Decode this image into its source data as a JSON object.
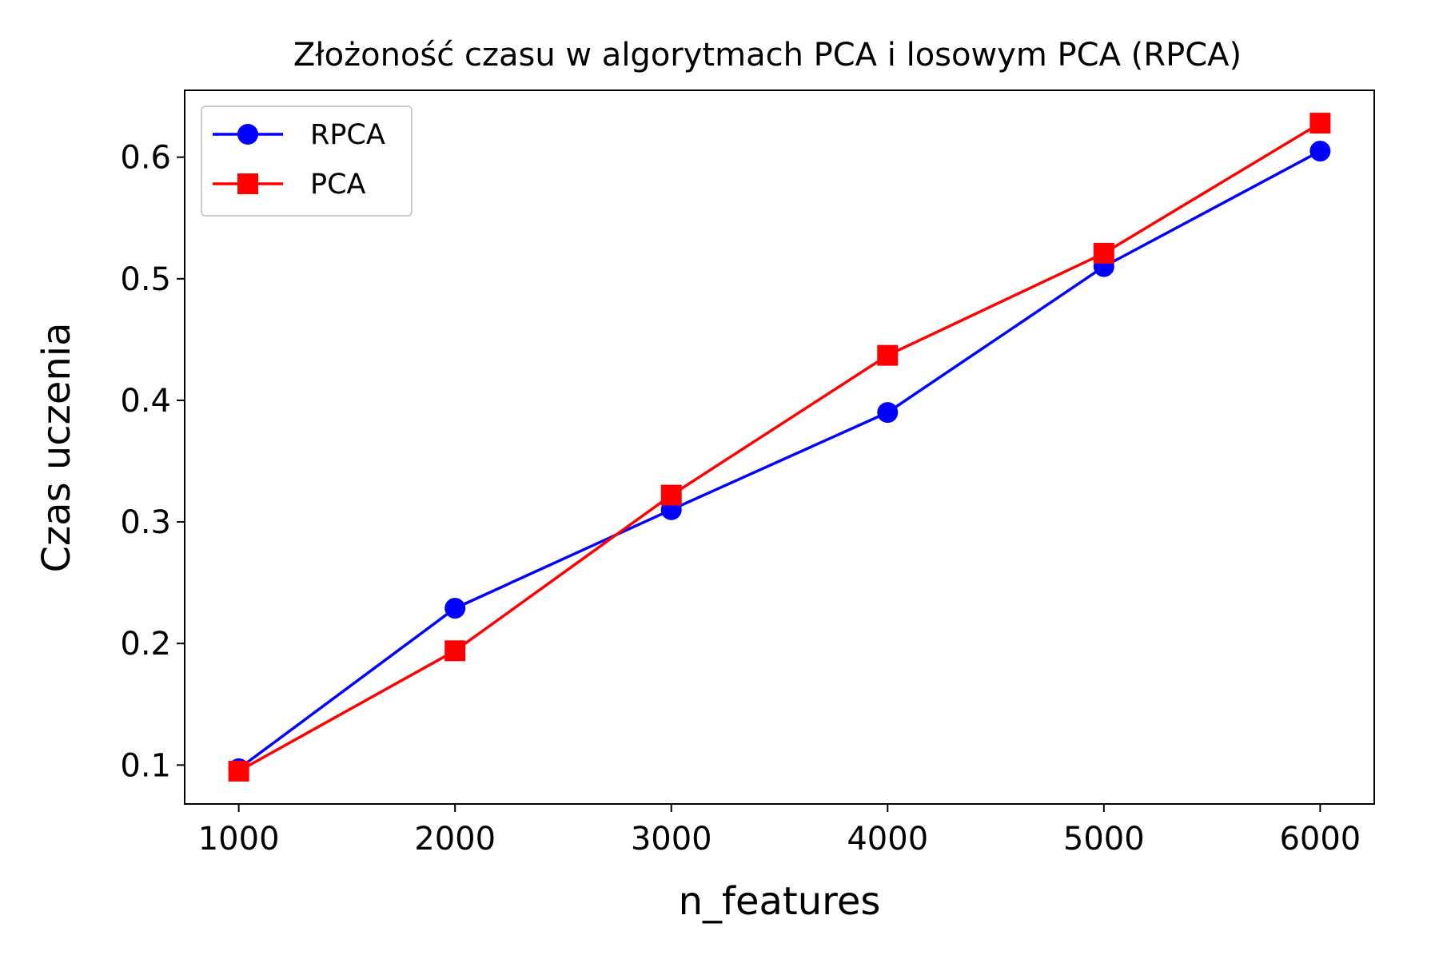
{
  "chart_data": {
    "type": "line",
    "title": "Złożoność czasu w algorytmach PCA i losowym PCA (RPCA)",
    "xlabel": "n_features",
    "ylabel": "Czas uczenia",
    "x": [
      1000,
      2000,
      3000,
      4000,
      5000,
      6000
    ],
    "xlim": [
      750,
      6250
    ],
    "ylim": [
      0.068,
      0.655
    ],
    "x_ticks": [
      "1000",
      "2000",
      "3000",
      "4000",
      "5000",
      "6000"
    ],
    "y_ticks": [
      "0.1",
      "0.2",
      "0.3",
      "0.4",
      "0.5",
      "0.6"
    ],
    "x_tick_values": [
      1000,
      2000,
      3000,
      4000,
      5000,
      6000
    ],
    "y_tick_values": [
      0.1,
      0.2,
      0.3,
      0.4,
      0.5,
      0.6
    ],
    "grid": false,
    "legend_position": "top-left",
    "series": [
      {
        "name": "RPCA",
        "color": "#0000ff",
        "marker": "circle",
        "values": [
          0.097,
          0.229,
          0.31,
          0.39,
          0.51,
          0.605
        ]
      },
      {
        "name": "PCA",
        "color": "#ff0000",
        "marker": "square",
        "values": [
          0.095,
          0.194,
          0.322,
          0.437,
          0.521,
          0.628
        ]
      }
    ]
  }
}
